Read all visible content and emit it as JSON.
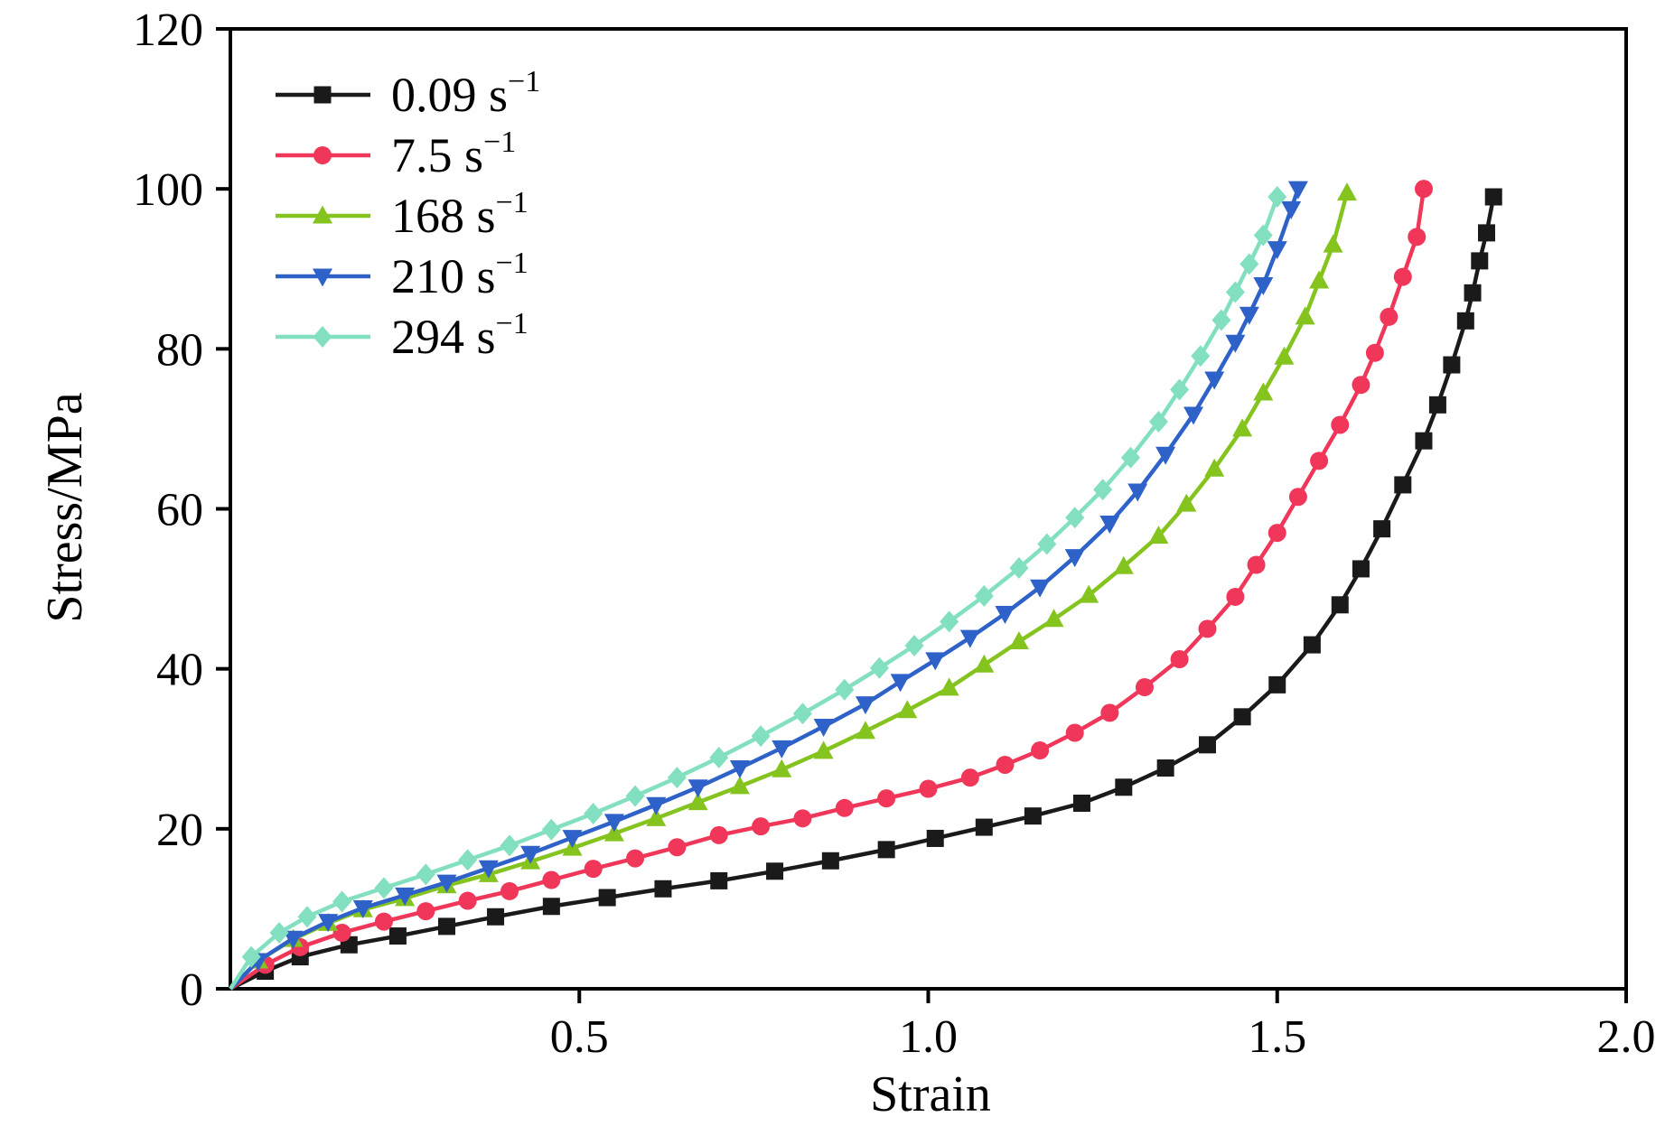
{
  "chart_data": {
    "type": "line",
    "title": "",
    "xlabel": "Strain",
    "ylabel": "Stress/MPa",
    "xlim": [
      0,
      2.0
    ],
    "ylim": [
      0,
      120
    ],
    "x_ticks": [
      0.5,
      1.0,
      1.5,
      2.0
    ],
    "x_tick_labels": [
      "0.5",
      "1.0",
      "1.5",
      "2.0"
    ],
    "y_ticks": [
      0,
      20,
      40,
      60,
      80,
      100,
      120
    ],
    "y_tick_labels": [
      "0",
      "20",
      "40",
      "60",
      "80",
      "100",
      "120"
    ],
    "grid": false,
    "legend_position": "top-left",
    "series": [
      {
        "name": "0.09 s-1",
        "label_base": "0.09 s",
        "label_sup": "−1",
        "color": "#1a1a1a",
        "marker": "square",
        "points": [
          [
            0,
            0
          ],
          [
            0.05,
            2.2
          ],
          [
            0.1,
            4.0
          ],
          [
            0.17,
            5.5
          ],
          [
            0.24,
            6.6
          ],
          [
            0.31,
            7.8
          ],
          [
            0.38,
            9.0
          ],
          [
            0.46,
            10.3
          ],
          [
            0.54,
            11.4
          ],
          [
            0.62,
            12.5
          ],
          [
            0.7,
            13.5
          ],
          [
            0.78,
            14.7
          ],
          [
            0.86,
            16.0
          ],
          [
            0.94,
            17.4
          ],
          [
            1.01,
            18.8
          ],
          [
            1.08,
            20.2
          ],
          [
            1.15,
            21.6
          ],
          [
            1.22,
            23.2
          ],
          [
            1.28,
            25.2
          ],
          [
            1.34,
            27.6
          ],
          [
            1.4,
            30.5
          ],
          [
            1.45,
            34.0
          ],
          [
            1.5,
            38.0
          ],
          [
            1.55,
            43.0
          ],
          [
            1.59,
            48.0
          ],
          [
            1.62,
            52.5
          ],
          [
            1.65,
            57.5
          ],
          [
            1.68,
            63.0
          ],
          [
            1.71,
            68.5
          ],
          [
            1.73,
            73.0
          ],
          [
            1.75,
            78.0
          ],
          [
            1.77,
            83.5
          ],
          [
            1.78,
            87.0
          ],
          [
            1.79,
            91.0
          ],
          [
            1.8,
            94.5
          ],
          [
            1.81,
            99.0
          ]
        ]
      },
      {
        "name": "7.5 s-1",
        "label_base": "7.5 s",
        "label_sup": "−1",
        "color": "#f0375a",
        "marker": "circle",
        "points": [
          [
            0,
            0
          ],
          [
            0.05,
            3.0
          ],
          [
            0.1,
            5.2
          ],
          [
            0.16,
            7.0
          ],
          [
            0.22,
            8.4
          ],
          [
            0.28,
            9.7
          ],
          [
            0.34,
            11.0
          ],
          [
            0.4,
            12.2
          ],
          [
            0.46,
            13.6
          ],
          [
            0.52,
            15.0
          ],
          [
            0.58,
            16.3
          ],
          [
            0.64,
            17.7
          ],
          [
            0.7,
            19.2
          ],
          [
            0.76,
            20.3
          ],
          [
            0.82,
            21.3
          ],
          [
            0.88,
            22.6
          ],
          [
            0.94,
            23.8
          ],
          [
            1.0,
            25.0
          ],
          [
            1.06,
            26.4
          ],
          [
            1.11,
            28.0
          ],
          [
            1.16,
            29.8
          ],
          [
            1.21,
            32.0
          ],
          [
            1.26,
            34.5
          ],
          [
            1.31,
            37.7
          ],
          [
            1.36,
            41.2
          ],
          [
            1.4,
            45.0
          ],
          [
            1.44,
            49.0
          ],
          [
            1.47,
            53.0
          ],
          [
            1.5,
            57.0
          ],
          [
            1.53,
            61.5
          ],
          [
            1.56,
            66.0
          ],
          [
            1.59,
            70.5
          ],
          [
            1.62,
            75.5
          ],
          [
            1.64,
            79.5
          ],
          [
            1.66,
            84.0
          ],
          [
            1.68,
            89.0
          ],
          [
            1.7,
            94.0
          ],
          [
            1.71,
            100.0
          ]
        ]
      },
      {
        "name": "168 s-1",
        "label_base": "168 s",
        "label_sup": "−1",
        "color": "#85c31e",
        "marker": "triangle-up",
        "points": [
          [
            0,
            0
          ],
          [
            0.04,
            3.5
          ],
          [
            0.09,
            6.2
          ],
          [
            0.14,
            8.2
          ],
          [
            0.19,
            9.9
          ],
          [
            0.25,
            11.3
          ],
          [
            0.31,
            12.9
          ],
          [
            0.37,
            14.3
          ],
          [
            0.43,
            15.9
          ],
          [
            0.49,
            17.6
          ],
          [
            0.55,
            19.4
          ],
          [
            0.61,
            21.3
          ],
          [
            0.67,
            23.3
          ],
          [
            0.73,
            25.3
          ],
          [
            0.79,
            27.4
          ],
          [
            0.85,
            29.7
          ],
          [
            0.91,
            32.2
          ],
          [
            0.97,
            34.8
          ],
          [
            1.03,
            37.6
          ],
          [
            1.08,
            40.5
          ],
          [
            1.13,
            43.4
          ],
          [
            1.18,
            46.2
          ],
          [
            1.23,
            49.2
          ],
          [
            1.28,
            52.8
          ],
          [
            1.33,
            56.6
          ],
          [
            1.37,
            60.6
          ],
          [
            1.41,
            65.0
          ],
          [
            1.45,
            70.0
          ],
          [
            1.48,
            74.5
          ],
          [
            1.51,
            79.0
          ],
          [
            1.54,
            84.0
          ],
          [
            1.56,
            88.5
          ],
          [
            1.58,
            93.0
          ],
          [
            1.6,
            99.5
          ]
        ]
      },
      {
        "name": "210 s-1",
        "label_base": "210 s",
        "label_sup": "−1",
        "color": "#2e62c9",
        "marker": "triangle-down",
        "points": [
          [
            0,
            0
          ],
          [
            0.04,
            3.5
          ],
          [
            0.09,
            6.3
          ],
          [
            0.14,
            8.4
          ],
          [
            0.19,
            10.1
          ],
          [
            0.25,
            11.7
          ],
          [
            0.31,
            13.3
          ],
          [
            0.37,
            15.1
          ],
          [
            0.43,
            16.9
          ],
          [
            0.49,
            18.9
          ],
          [
            0.55,
            20.9
          ],
          [
            0.61,
            23.0
          ],
          [
            0.67,
            25.2
          ],
          [
            0.73,
            27.6
          ],
          [
            0.79,
            30.1
          ],
          [
            0.85,
            32.8
          ],
          [
            0.91,
            35.6
          ],
          [
            0.96,
            38.4
          ],
          [
            1.01,
            41.1
          ],
          [
            1.06,
            43.9
          ],
          [
            1.11,
            46.9
          ],
          [
            1.16,
            50.2
          ],
          [
            1.21,
            54.0
          ],
          [
            1.26,
            58.2
          ],
          [
            1.3,
            62.2
          ],
          [
            1.34,
            66.8
          ],
          [
            1.38,
            71.8
          ],
          [
            1.41,
            76.2
          ],
          [
            1.44,
            80.8
          ],
          [
            1.46,
            84.3
          ],
          [
            1.48,
            88.0
          ],
          [
            1.5,
            92.5
          ],
          [
            1.52,
            97.5
          ],
          [
            1.53,
            100.0
          ]
        ]
      },
      {
        "name": "294 s-1",
        "label_base": "294 s",
        "label_sup": "−1",
        "color": "#82e0c0",
        "marker": "diamond",
        "points": [
          [
            0,
            0
          ],
          [
            0.03,
            4.0
          ],
          [
            0.07,
            7.0
          ],
          [
            0.11,
            9.0
          ],
          [
            0.16,
            10.9
          ],
          [
            0.22,
            12.6
          ],
          [
            0.28,
            14.3
          ],
          [
            0.34,
            16.1
          ],
          [
            0.4,
            17.9
          ],
          [
            0.46,
            19.9
          ],
          [
            0.52,
            21.9
          ],
          [
            0.58,
            24.1
          ],
          [
            0.64,
            26.4
          ],
          [
            0.7,
            28.9
          ],
          [
            0.76,
            31.6
          ],
          [
            0.82,
            34.4
          ],
          [
            0.88,
            37.4
          ],
          [
            0.93,
            40.1
          ],
          [
            0.98,
            42.9
          ],
          [
            1.03,
            45.9
          ],
          [
            1.08,
            49.1
          ],
          [
            1.13,
            52.6
          ],
          [
            1.17,
            55.6
          ],
          [
            1.21,
            58.9
          ],
          [
            1.25,
            62.4
          ],
          [
            1.29,
            66.4
          ],
          [
            1.33,
            70.9
          ],
          [
            1.36,
            74.9
          ],
          [
            1.39,
            79.1
          ],
          [
            1.42,
            83.6
          ],
          [
            1.44,
            87.1
          ],
          [
            1.46,
            90.6
          ],
          [
            1.48,
            94.2
          ],
          [
            1.5,
            99.0
          ]
        ]
      }
    ]
  }
}
